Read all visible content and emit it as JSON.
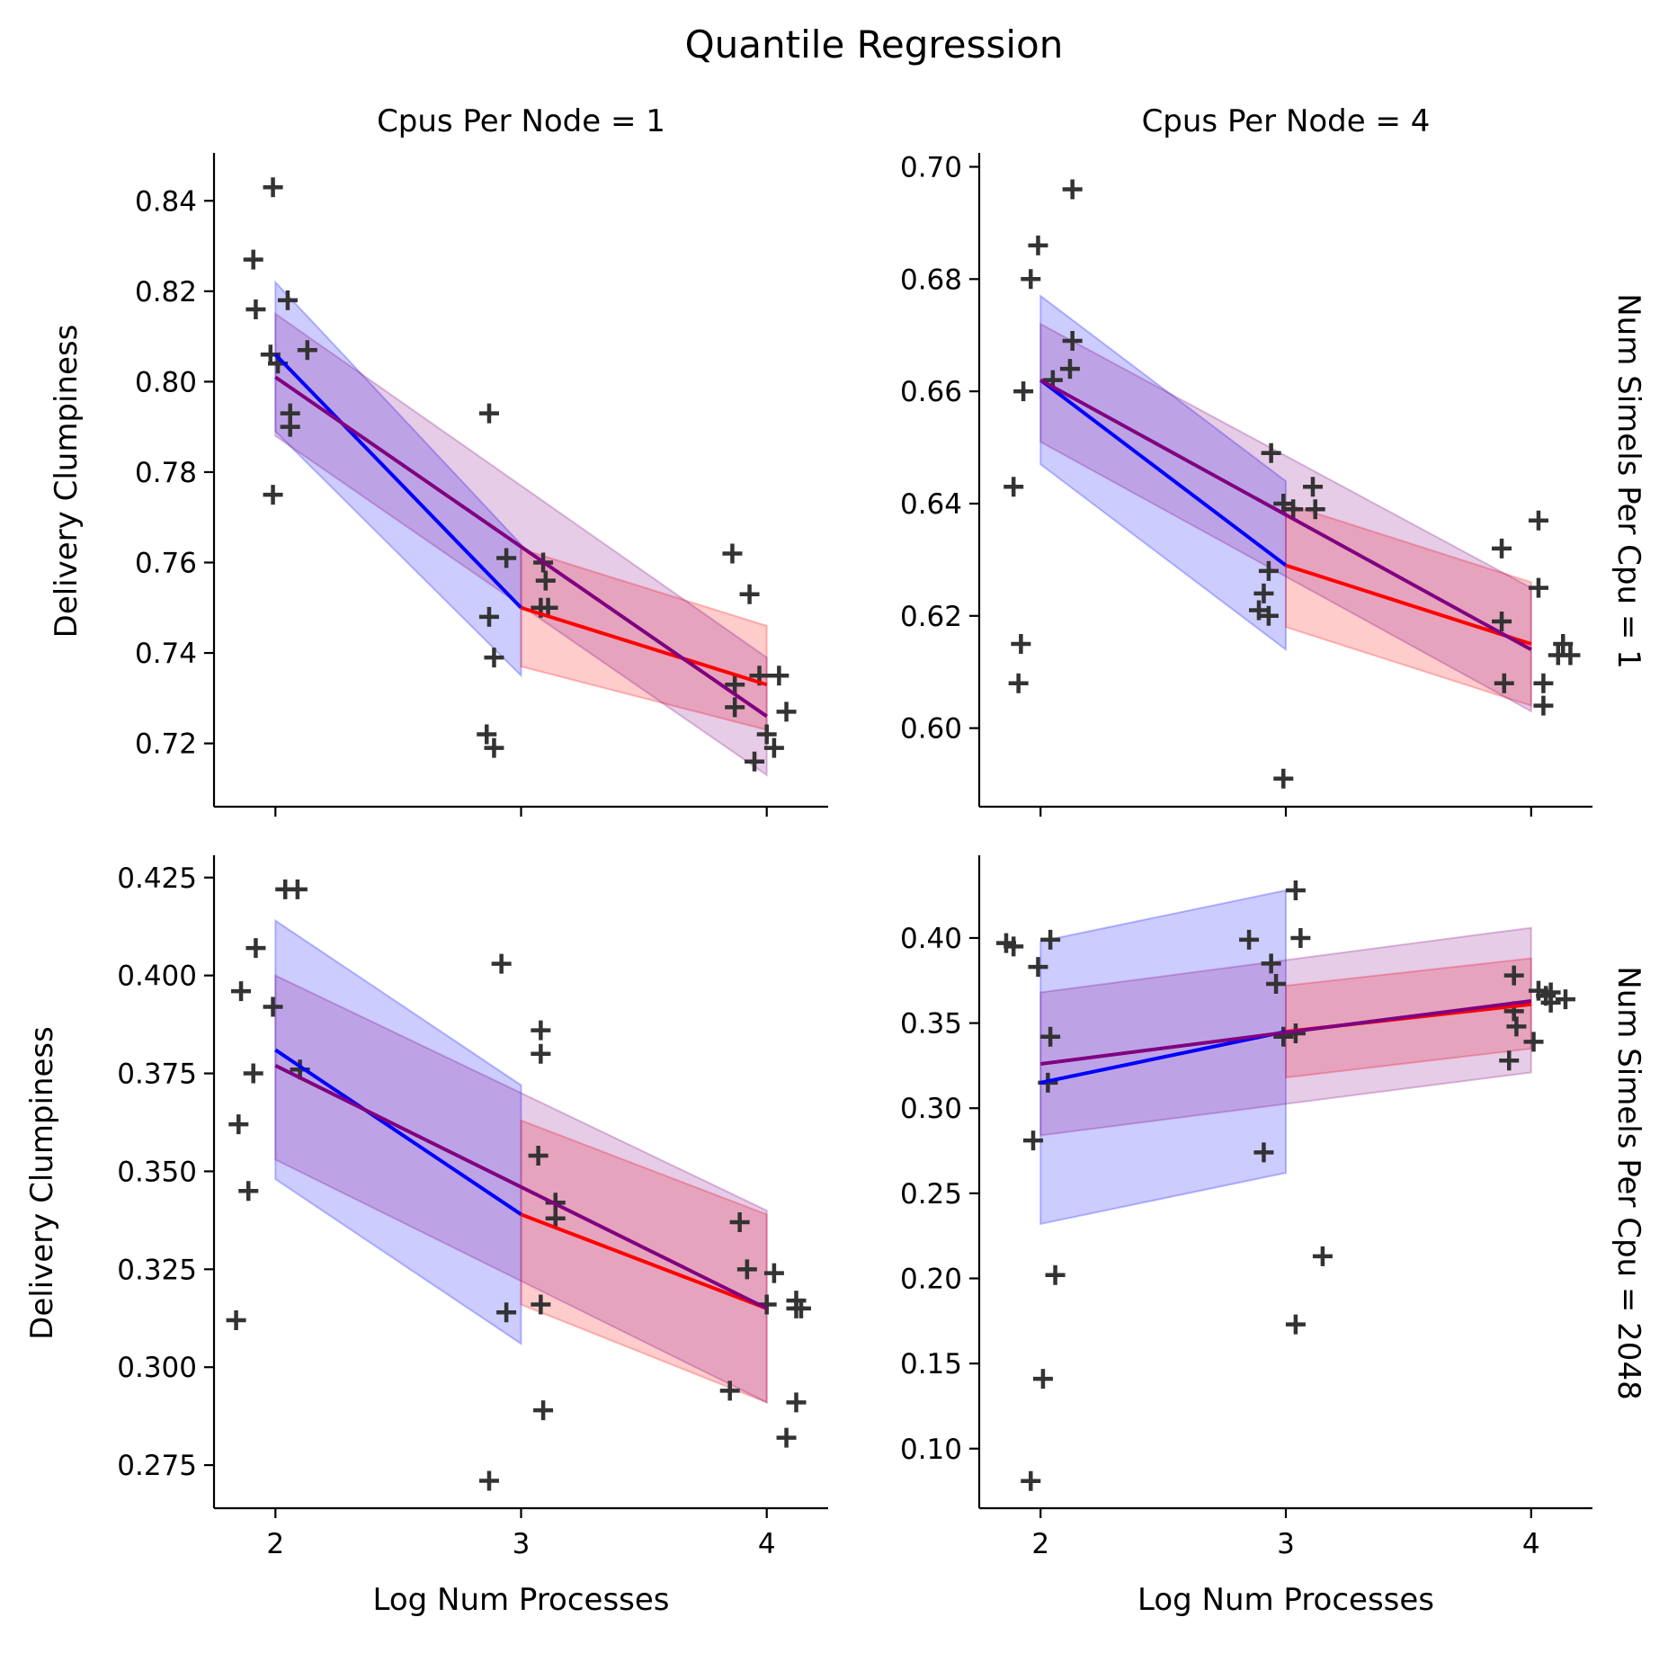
{
  "chart_data": {
    "type": "scatter",
    "title": "Quantile Regression",
    "x_label": "Log Num Processes",
    "y_label": "Delivery Clumpiness",
    "x_ticks": [
      2,
      3,
      4
    ],
    "x_range": [
      1.75,
      4.25
    ],
    "column_facets": [
      "Cpus Per Node = 1",
      "Cpus Per Node = 4"
    ],
    "row_facets": [
      "Num Simels Per Cpu = 1",
      "Num Simels Per Cpu = 2048"
    ],
    "colors": {
      "points": "#333333",
      "segment_low": "#0000ff",
      "segment_high": "#ff0000",
      "overall": "#800080"
    },
    "panels": [
      {
        "col": 0,
        "row": 0,
        "y_range": [
          0.706,
          0.85
        ],
        "y_ticks": [
          0.72,
          0.74,
          0.76,
          0.78,
          0.8,
          0.82,
          0.84
        ],
        "y_tick_labels": [
          "0.72",
          "0.74",
          "0.76",
          "0.78",
          "0.80",
          "0.82",
          "0.84"
        ],
        "points": [
          [
            1.99,
            0.843
          ],
          [
            1.91,
            0.827
          ],
          [
            1.92,
            0.816
          ],
          [
            2.05,
            0.818
          ],
          [
            1.98,
            0.806
          ],
          [
            2.01,
            0.804
          ],
          [
            2.13,
            0.807
          ],
          [
            2.06,
            0.793
          ],
          [
            2.06,
            0.79
          ],
          [
            1.99,
            0.775
          ],
          [
            2.87,
            0.793
          ],
          [
            2.94,
            0.761
          ],
          [
            3.09,
            0.76
          ],
          [
            3.1,
            0.756
          ],
          [
            3.08,
            0.75
          ],
          [
            3.11,
            0.75
          ],
          [
            2.87,
            0.748
          ],
          [
            2.89,
            0.739
          ],
          [
            2.86,
            0.722
          ],
          [
            2.89,
            0.719
          ],
          [
            3.86,
            0.762
          ],
          [
            3.93,
            0.753
          ],
          [
            3.97,
            0.735
          ],
          [
            4.05,
            0.735
          ],
          [
            3.87,
            0.733
          ],
          [
            3.87,
            0.728
          ],
          [
            4.08,
            0.727
          ],
          [
            4.0,
            0.722
          ],
          [
            4.03,
            0.719
          ],
          [
            3.95,
            0.716
          ]
        ],
        "low_fit": {
          "x": [
            2,
            3
          ],
          "y": [
            0.806,
            0.75
          ],
          "band_low": [
            0.789,
            0.735
          ],
          "band_high": [
            0.822,
            0.764
          ]
        },
        "high_fit": {
          "x": [
            3,
            4
          ],
          "y": [
            0.75,
            0.733
          ],
          "band_low": [
            0.737,
            0.723
          ],
          "band_high": [
            0.763,
            0.746
          ]
        },
        "overall_fit": {
          "x": [
            2,
            4
          ],
          "y": [
            0.801,
            0.726
          ],
          "band_low": [
            0.788,
            0.713
          ],
          "band_high": [
            0.815,
            0.739
          ]
        }
      },
      {
        "col": 1,
        "row": 0,
        "y_range": [
          0.586,
          0.702
        ],
        "y_ticks": [
          0.6,
          0.62,
          0.64,
          0.66,
          0.68,
          0.7
        ],
        "y_tick_labels": [
          "0.60",
          "0.62",
          "0.64",
          "0.66",
          "0.68",
          "0.70"
        ],
        "points": [
          [
            2.13,
            0.696
          ],
          [
            1.99,
            0.686
          ],
          [
            1.96,
            0.68
          ],
          [
            2.13,
            0.669
          ],
          [
            2.12,
            0.664
          ],
          [
            2.05,
            0.662
          ],
          [
            1.93,
            0.66
          ],
          [
            1.89,
            0.643
          ],
          [
            1.92,
            0.615
          ],
          [
            1.91,
            0.608
          ],
          [
            2.94,
            0.649
          ],
          [
            3.11,
            0.643
          ],
          [
            2.99,
            0.64
          ],
          [
            3.12,
            0.639
          ],
          [
            3.03,
            0.639
          ],
          [
            2.93,
            0.628
          ],
          [
            2.91,
            0.624
          ],
          [
            2.89,
            0.621
          ],
          [
            2.93,
            0.62
          ],
          [
            2.99,
            0.591
          ],
          [
            4.03,
            0.637
          ],
          [
            3.88,
            0.632
          ],
          [
            4.03,
            0.625
          ],
          [
            3.88,
            0.619
          ],
          [
            4.13,
            0.615
          ],
          [
            4.11,
            0.613
          ],
          [
            4.16,
            0.613
          ],
          [
            3.89,
            0.608
          ],
          [
            4.05,
            0.608
          ],
          [
            4.05,
            0.604
          ]
        ],
        "low_fit": {
          "x": [
            2,
            3
          ],
          "y": [
            0.662,
            0.629
          ],
          "band_low": [
            0.647,
            0.614
          ],
          "band_high": [
            0.677,
            0.644
          ]
        },
        "high_fit": {
          "x": [
            3,
            4
          ],
          "y": [
            0.629,
            0.615
          ],
          "band_low": [
            0.618,
            0.604
          ],
          "band_high": [
            0.64,
            0.626
          ]
        },
        "overall_fit": {
          "x": [
            2,
            4
          ],
          "y": [
            0.662,
            0.614
          ],
          "band_low": [
            0.651,
            0.603
          ],
          "band_high": [
            0.672,
            0.625
          ]
        }
      },
      {
        "col": 0,
        "row": 1,
        "y_range": [
          0.264,
          0.43
        ],
        "y_ticks": [
          0.275,
          0.3,
          0.325,
          0.35,
          0.375,
          0.4,
          0.425
        ],
        "y_tick_labels": [
          "0.275",
          "0.300",
          "0.325",
          "0.350",
          "0.375",
          "0.400",
          "0.425"
        ],
        "points": [
          [
            2.04,
            0.422
          ],
          [
            2.09,
            0.422
          ],
          [
            1.92,
            0.407
          ],
          [
            1.86,
            0.396
          ],
          [
            1.99,
            0.392
          ],
          [
            1.91,
            0.375
          ],
          [
            2.1,
            0.376
          ],
          [
            1.85,
            0.362
          ],
          [
            1.89,
            0.345
          ],
          [
            1.84,
            0.312
          ],
          [
            2.92,
            0.403
          ],
          [
            3.08,
            0.386
          ],
          [
            3.08,
            0.38
          ],
          [
            3.07,
            0.354
          ],
          [
            3.14,
            0.342
          ],
          [
            3.14,
            0.338
          ],
          [
            2.94,
            0.314
          ],
          [
            3.08,
            0.316
          ],
          [
            3.09,
            0.289
          ],
          [
            2.87,
            0.271
          ],
          [
            3.89,
            0.337
          ],
          [
            3.92,
            0.325
          ],
          [
            4.03,
            0.324
          ],
          [
            4.12,
            0.317
          ],
          [
            4.12,
            0.315
          ],
          [
            4.14,
            0.315
          ],
          [
            3.85,
            0.294
          ],
          [
            4.12,
            0.291
          ],
          [
            4.08,
            0.282
          ],
          [
            4.0,
            0.316
          ]
        ],
        "low_fit": {
          "x": [
            2,
            3
          ],
          "y": [
            0.381,
            0.339
          ],
          "band_low": [
            0.348,
            0.306
          ],
          "band_high": [
            0.414,
            0.372
          ]
        },
        "high_fit": {
          "x": [
            3,
            4
          ],
          "y": [
            0.339,
            0.315
          ],
          "band_low": [
            0.316,
            0.291
          ],
          "band_high": [
            0.363,
            0.339
          ]
        },
        "overall_fit": {
          "x": [
            2,
            4
          ],
          "y": [
            0.377,
            0.315
          ],
          "band_low": [
            0.353,
            0.291
          ],
          "band_high": [
            0.4,
            0.34
          ]
        }
      },
      {
        "col": 1,
        "row": 1,
        "y_range": [
          0.065,
          0.447
        ],
        "y_ticks": [
          0.1,
          0.15,
          0.2,
          0.25,
          0.3,
          0.35,
          0.4
        ],
        "y_tick_labels": [
          "0.10",
          "0.15",
          "0.20",
          "0.25",
          "0.30",
          "0.35",
          "0.40"
        ],
        "points": [
          [
            1.86,
            0.397
          ],
          [
            1.89,
            0.395
          ],
          [
            2.04,
            0.399
          ],
          [
            1.99,
            0.383
          ],
          [
            2.04,
            0.342
          ],
          [
            2.03,
            0.315
          ],
          [
            1.97,
            0.281
          ],
          [
            2.06,
            0.202
          ],
          [
            2.01,
            0.141
          ],
          [
            1.96,
            0.081
          ],
          [
            3.04,
            0.428
          ],
          [
            2.85,
            0.399
          ],
          [
            3.06,
            0.4
          ],
          [
            2.94,
            0.385
          ],
          [
            2.96,
            0.373
          ],
          [
            3.04,
            0.344
          ],
          [
            2.99,
            0.342
          ],
          [
            2.91,
            0.274
          ],
          [
            3.15,
            0.213
          ],
          [
            3.04,
            0.173
          ],
          [
            3.93,
            0.378
          ],
          [
            4.03,
            0.369
          ],
          [
            4.08,
            0.368
          ],
          [
            4.14,
            0.364
          ],
          [
            4.08,
            0.362
          ],
          [
            3.93,
            0.357
          ],
          [
            3.94,
            0.348
          ],
          [
            4.01,
            0.339
          ],
          [
            3.91,
            0.328
          ],
          [
            4.06,
            0.366
          ]
        ],
        "low_fit": {
          "x": [
            2,
            3
          ],
          "y": [
            0.315,
            0.345
          ],
          "band_low": [
            0.232,
            0.262
          ],
          "band_high": [
            0.398,
            0.428
          ]
        },
        "high_fit": {
          "x": [
            3,
            4
          ],
          "y": [
            0.345,
            0.361
          ],
          "band_low": [
            0.318,
            0.335
          ],
          "band_high": [
            0.372,
            0.388
          ]
        },
        "overall_fit": {
          "x": [
            2,
            4
          ],
          "y": [
            0.326,
            0.363
          ],
          "band_low": [
            0.284,
            0.321
          ],
          "band_high": [
            0.368,
            0.406
          ]
        }
      }
    ]
  }
}
